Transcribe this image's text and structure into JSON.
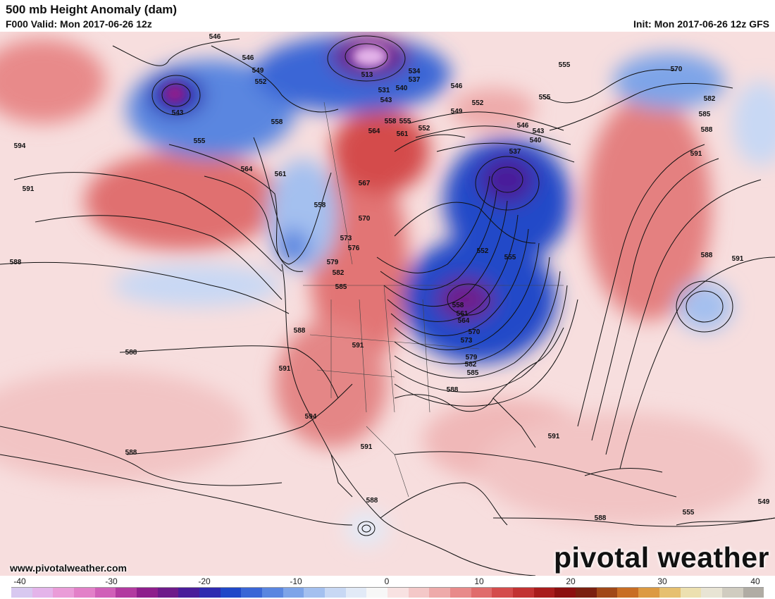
{
  "header": {
    "title": "500 mb Height Anomaly (dam)",
    "valid": "F000 Valid: Mon 2017-06-26 12z",
    "init": "Init: Mon 2017-06-26 12z GFS"
  },
  "footer": {
    "website": "www.pivotalweather.com",
    "brand": "pivotal weather"
  },
  "colorbar": {
    "ticks": [
      "-40",
      "-30",
      "-20",
      "-10",
      "0",
      "10",
      "20",
      "30",
      "40"
    ],
    "colors": [
      "#d8c8f0",
      "#e4b4ea",
      "#ea9cd8",
      "#e280c8",
      "#d060b8",
      "#b23aa0",
      "#8e1e8c",
      "#6e1a8a",
      "#4a1c9a",
      "#2e2ab0",
      "#2048c8",
      "#3a66d6",
      "#5a86e0",
      "#7ea4e8",
      "#a4c0ef",
      "#c8d8f4",
      "#e2eaf7",
      "#f7f7f7",
      "#f8e2e2",
      "#f4c8c8",
      "#eeaaaa",
      "#e88a8a",
      "#e06c6c",
      "#d44c4c",
      "#c23232",
      "#a81c1c",
      "#8c1010",
      "#7a2010",
      "#a04818",
      "#c86e24",
      "#dc9a42",
      "#e6c070",
      "#ece0b0",
      "#e8e4d4",
      "#d0ccc0",
      "#b0aca4"
    ]
  },
  "map": {
    "contour_labels": [
      "546",
      "546",
      "549",
      "552",
      "543",
      "513",
      "531",
      "534",
      "537",
      "540",
      "543",
      "546",
      "549",
      "552",
      "555",
      "555",
      "570",
      "582",
      "585",
      "588",
      "591",
      "594",
      "591",
      "588",
      "564",
      "558",
      "561",
      "558",
      "555",
      "567",
      "570",
      "573",
      "576",
      "579",
      "582",
      "585",
      "588",
      "591",
      "591",
      "594",
      "591",
      "588",
      "564",
      "561",
      "558",
      "537",
      "540",
      "543",
      "546",
      "552",
      "555",
      "558",
      "561",
      "564",
      "570",
      "573",
      "579",
      "582",
      "585",
      "588",
      "591",
      "591",
      "588",
      "588",
      "588",
      "588",
      "555",
      "549",
      "552",
      "555"
    ]
  },
  "colors": {
    "accent": "#e05a5a",
    "trough": "#2a3cc0",
    "land": "#ffffff"
  }
}
